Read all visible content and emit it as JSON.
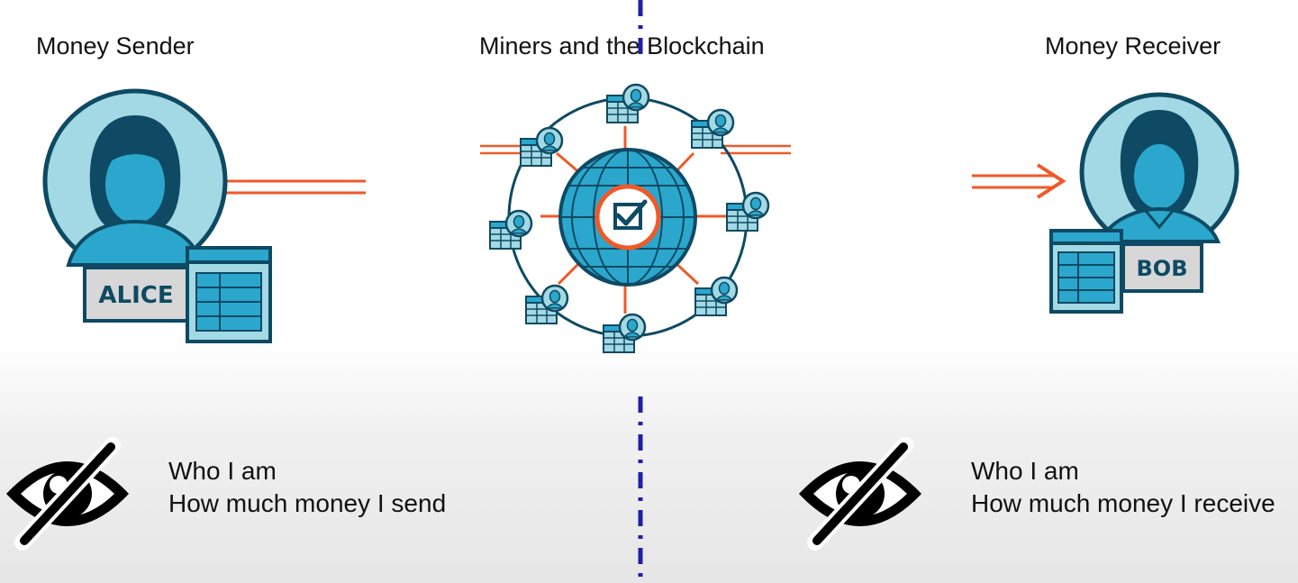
{
  "headers": {
    "sender": "Money Sender",
    "miners": "Miners and the Blockchain",
    "receiver": "Money Receiver"
  },
  "sender": {
    "name_label": "ALICE"
  },
  "receiver": {
    "name_label": "BOB"
  },
  "hidden_info": {
    "sender": {
      "line1": "Who I am",
      "line2": "How much money I send"
    },
    "receiver": {
      "line1": "Who I am",
      "line2": "How much money I receive"
    }
  },
  "icons": {
    "hidden": "eye-slash-icon",
    "verified": "checkbox-icon",
    "network": "globe-icon",
    "ledger": "table-icon"
  },
  "colors": {
    "navy": "#0e4a63",
    "light_blue": "#a3d9e4",
    "mid_blue": "#2ba7cd",
    "orange": "#ef5a28",
    "divider": "#1f1fa8"
  }
}
